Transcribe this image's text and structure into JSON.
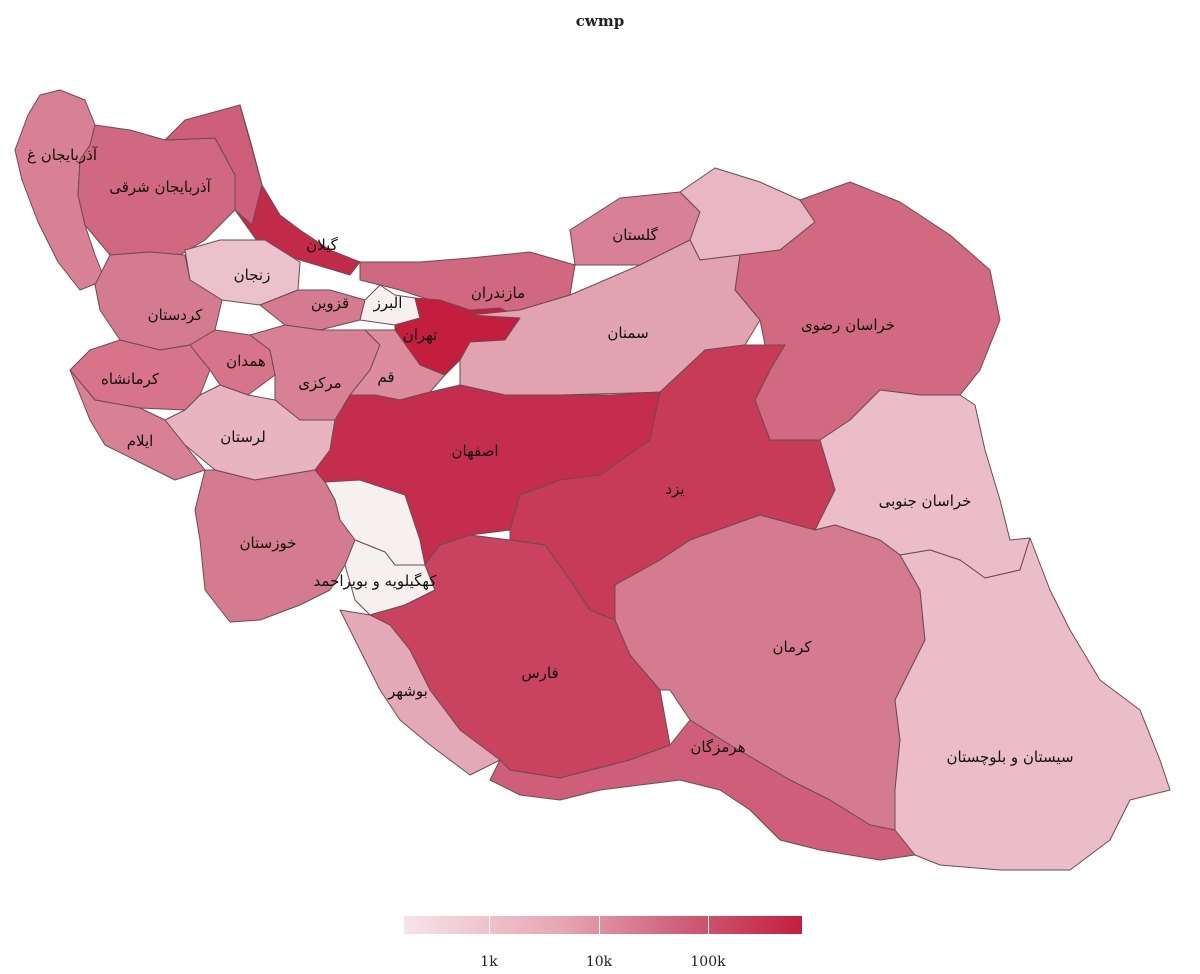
{
  "title": "cwmp",
  "scale_colors": [
    "#f6e4e8",
    "#e6a5b3",
    "#cf5f78",
    "#c41e3e"
  ],
  "legend": {
    "ticks": [
      "1k",
      "10k",
      "100k"
    ]
  },
  "provinces": [
    {
      "id": "azarbayjan-gharbi",
      "label": "آذربایجان غ",
      "color": "#d98194"
    },
    {
      "id": "azarbayjan-sharghi",
      "label": "آذربایجان شرقی",
      "color": "#d0687f"
    },
    {
      "id": "ardabil",
      "label": "",
      "color": "#cf5f78"
    },
    {
      "id": "gilan",
      "label": "گیلان",
      "color": "#c22a4a"
    },
    {
      "id": "zanjan",
      "label": "زنجان",
      "color": "#ebc2cc"
    },
    {
      "id": "mazandaran",
      "label": "مازندران",
      "color": "#d0687f"
    },
    {
      "id": "golestan",
      "label": "گلستان",
      "color": "#d88196"
    },
    {
      "id": "khorasan-shomali",
      "label": "",
      "color": "#e8b7c3"
    },
    {
      "id": "khorasan-razavi",
      "label": "خراسان رضوی",
      "color": "#d16a81"
    },
    {
      "id": "kordestan",
      "label": "کردستان",
      "color": "#d57b8f"
    },
    {
      "id": "ghazvin",
      "label": "قزوین",
      "color": "#d57b8f"
    },
    {
      "id": "alborz",
      "label": "البرز",
      "color": "#f7f0f1"
    },
    {
      "id": "tehran",
      "label": "تهران",
      "color": "#c41e3e"
    },
    {
      "id": "semnan",
      "label": "سمنان",
      "color": "#e2a3b1"
    },
    {
      "id": "kermanshah",
      "label": "کرمانشاه",
      "color": "#d77489"
    },
    {
      "id": "hamedan",
      "label": "همدان",
      "color": "#d77489"
    },
    {
      "id": "markazi",
      "label": "مرکزی",
      "color": "#d98194"
    },
    {
      "id": "qom",
      "label": "قم",
      "color": "#dc8c9d"
    },
    {
      "id": "ilam",
      "label": "ایلام",
      "color": "#d98194"
    },
    {
      "id": "lorestan",
      "label": "لرستان",
      "color": "#e8b4c0"
    },
    {
      "id": "esfahan",
      "label": "اصفهان",
      "color": "#c42d4d"
    },
    {
      "id": "yazd",
      "label": "یزد",
      "color": "#c73a58"
    },
    {
      "id": "khorasan-jonubi",
      "label": "خراسان جنوبی",
      "color": "#ebbdc8"
    },
    {
      "id": "chaharmahal",
      "label": "",
      "color": "#f7f0f1"
    },
    {
      "id": "khuzestan",
      "label": "خوزستان",
      "color": "#d57b8f"
    },
    {
      "id": "kohgiluyeh",
      "label": "کهگیلویه و بویراحمد",
      "color": "#f7f0f1"
    },
    {
      "id": "fars",
      "label": "فارس",
      "color": "#c94360"
    },
    {
      "id": "kerman",
      "label": "کرمان",
      "color": "#d57b8f"
    },
    {
      "id": "bushehr",
      "label": "بوشهر",
      "color": "#e4a9b7"
    },
    {
      "id": "hormozgan",
      "label": "هرمزگان",
      "color": "#cf5f78"
    },
    {
      "id": "sistan",
      "label": "سیستان و بلوچستان",
      "color": "#ebbdc8"
    }
  ]
}
